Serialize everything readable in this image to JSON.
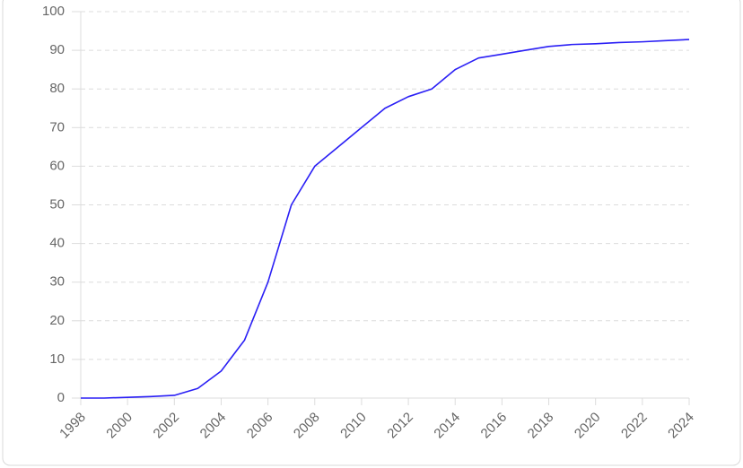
{
  "chart_data": {
    "type": "line",
    "x": [
      1998,
      1999,
      2000,
      2001,
      2002,
      2003,
      2004,
      2005,
      2006,
      2007,
      2008,
      2009,
      2010,
      2011,
      2012,
      2013,
      2014,
      2015,
      2016,
      2017,
      2018,
      2019,
      2020,
      2021,
      2022,
      2023,
      2024
    ],
    "values": [
      0,
      0,
      0.2,
      0.4,
      0.7,
      2.5,
      7,
      15,
      30,
      50,
      60,
      65,
      70,
      75,
      78,
      80,
      85,
      88,
      89,
      90,
      91,
      91.5,
      91.7,
      92,
      92.2,
      92.5,
      92.8
    ],
    "color": "#2a1ff5",
    "xlim": [
      1998,
      2024
    ],
    "xticks": [
      1998,
      2000,
      2002,
      2004,
      2006,
      2008,
      2010,
      2012,
      2014,
      2016,
      2018,
      2020,
      2022,
      2024
    ],
    "ylim": [
      0,
      100
    ],
    "yticks": [
      0,
      10,
      20,
      30,
      40,
      50,
      60,
      70,
      80,
      90,
      100
    ],
    "grid": true
  }
}
